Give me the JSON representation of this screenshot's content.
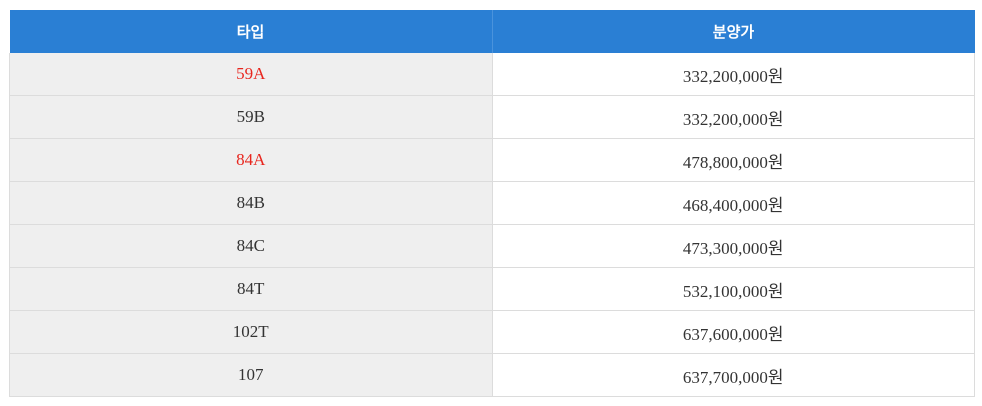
{
  "table": {
    "header": [
      "타입",
      "분양가"
    ],
    "rows": [
      {
        "type": "59A",
        "price": "332,200,000원",
        "type_color": "#e8261e"
      },
      {
        "type": "59B",
        "price": "332,200,000원",
        "type_color": "#333333"
      },
      {
        "type": "84A",
        "price": "478,800,000원",
        "type_color": "#e8261e"
      },
      {
        "type": "84B",
        "price": "468,400,000원",
        "type_color": "#333333"
      },
      {
        "type": "84C",
        "price": "473,300,000원",
        "type_color": "#333333"
      },
      {
        "type": "84T",
        "price": "532,100,000원",
        "type_color": "#333333"
      },
      {
        "type": "102T",
        "price": "637,600,000원",
        "type_color": "#333333"
      },
      {
        "type": "107",
        "price": "637,700,000원",
        "type_color": "#333333"
      }
    ]
  }
}
